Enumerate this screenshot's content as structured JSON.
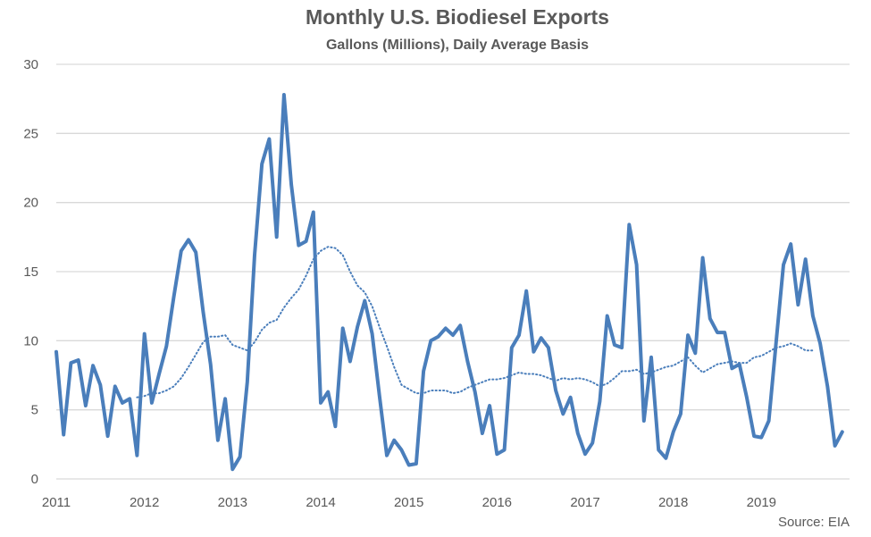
{
  "chart_data": {
    "type": "line",
    "title": "Monthly U.S. Biodiesel Exports",
    "subtitle": "Gallons (Millions), Daily Average Basis",
    "source": "Source: EIA",
    "xlabel": "",
    "ylabel": "",
    "x_start": 2011,
    "x_tick_labels": [
      "2011",
      "2012",
      "2013",
      "2014",
      "2015",
      "2016",
      "2017",
      "2018",
      "2019"
    ],
    "y_tick_labels": [
      "0",
      "5",
      "10",
      "15",
      "20",
      "25",
      "30"
    ],
    "ylim": [
      0,
      30
    ],
    "grid": "horizontal",
    "colors": {
      "series": "#4a7ebb",
      "grid": "#d9d9d9",
      "text": "#595959"
    },
    "series": [
      {
        "style": "solid",
        "values": [
          9.2,
          3.2,
          8.4,
          8.6,
          5.3,
          8.2,
          6.8,
          3.1,
          6.7,
          5.5,
          5.8,
          1.7,
          10.5,
          5.5,
          7.6,
          9.6,
          13.2,
          16.5,
          17.3,
          16.4,
          12.1,
          8.3,
          2.8,
          5.8,
          0.7,
          1.6,
          7.0,
          16.2,
          22.8,
          24.6,
          17.5,
          27.8,
          21.3,
          16.9,
          17.2,
          19.3,
          5.5,
          6.3,
          3.8,
          10.9,
          8.5,
          11.0,
          12.9,
          10.5,
          6.0,
          1.7,
          2.8,
          2.1,
          1.0,
          1.1,
          7.8,
          10.0,
          10.3,
          10.9,
          10.4,
          11.1,
          8.5,
          6.3,
          3.3,
          5.3,
          1.8,
          2.1,
          9.5,
          10.4,
          13.6,
          9.2,
          10.2,
          9.5,
          6.4,
          4.7,
          5.9,
          3.3,
          1.8,
          2.6,
          5.6,
          11.8,
          9.7,
          9.5,
          18.4,
          15.5,
          4.2,
          8.8,
          2.1,
          1.5,
          3.4,
          4.7,
          10.4,
          9.1,
          16.0,
          11.6,
          10.6,
          10.6,
          8.0,
          8.3,
          5.9,
          3.1,
          3.0,
          4.2,
          9.9,
          15.5,
          17.0,
          12.6,
          15.9,
          11.8,
          9.8,
          6.7,
          2.4,
          3.4
        ]
      },
      {
        "style": "dotted",
        "offset": 11,
        "values": [
          5.9,
          6.0,
          6.2,
          6.2,
          6.4,
          6.7,
          7.3,
          8.1,
          9.0,
          9.9,
          10.3,
          10.3,
          10.4,
          9.7,
          9.5,
          9.3,
          9.9,
          10.8,
          11.3,
          11.5,
          12.4,
          13.1,
          13.7,
          14.7,
          15.9,
          16.5,
          16.8,
          16.7,
          16.2,
          15.0,
          14.0,
          13.5,
          12.5,
          11.0,
          9.6,
          8.1,
          6.8,
          6.5,
          6.2,
          6.2,
          6.4,
          6.4,
          6.4,
          6.2,
          6.3,
          6.6,
          6.8,
          7.0,
          7.2,
          7.2,
          7.3,
          7.5,
          7.7,
          7.6,
          7.6,
          7.5,
          7.3,
          7.1,
          7.3,
          7.2,
          7.3,
          7.2,
          7.0,
          6.7,
          6.9,
          7.3,
          7.8,
          7.8,
          7.9,
          7.6,
          7.7,
          7.9,
          8.1,
          8.2,
          8.5,
          8.8,
          8.2,
          7.7,
          8.0,
          8.3,
          8.4,
          8.5,
          8.4,
          8.4,
          8.8,
          8.9,
          9.2,
          9.5,
          9.6,
          9.8,
          9.6,
          9.3,
          9.3
        ]
      }
    ]
  }
}
